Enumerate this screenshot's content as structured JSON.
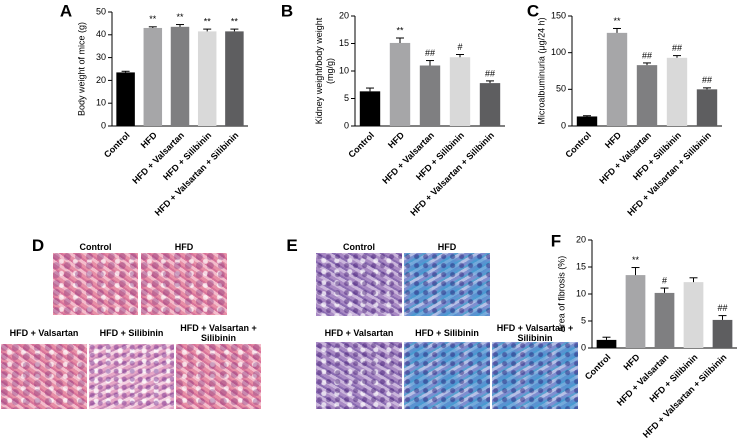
{
  "chart_data": [
    {
      "type": "bar",
      "panel": "A",
      "ylabel": [
        "Body weight of mice (g)"
      ],
      "categories": [
        "Control",
        "HFD",
        "HFD + Valsartan",
        "HFD + Silibinin",
        "HFD + Valsartan + Silibinin"
      ],
      "values": [
        23.5,
        43,
        43.5,
        41.5,
        41.5
      ],
      "errors": [
        0.5,
        0.5,
        1,
        1,
        1
      ],
      "annotations": [
        null,
        "**",
        "**",
        "**",
        "**"
      ],
      "colors": [
        "#000000",
        "#a6a6a8",
        "#7f7f81",
        "#d9d9d9",
        "#5e5e60"
      ],
      "ylim": [
        0,
        50
      ],
      "yticks": [
        0,
        10,
        20,
        30,
        40,
        50
      ]
    },
    {
      "type": "bar",
      "panel": "B",
      "ylabel": [
        "Kidney weight/body weight",
        "(mg/g)"
      ],
      "categories": [
        "Control",
        "HFD",
        "HFD + Valsartan",
        "HFD + Silibinin",
        "HFD + Valsartan + Silibinin"
      ],
      "values": [
        6.3,
        15.1,
        11,
        12.5,
        7.8
      ],
      "errors": [
        0.6,
        0.9,
        0.9,
        0.5,
        0.4
      ],
      "annotations": [
        null,
        "**",
        "##",
        "#",
        "##"
      ],
      "colors": [
        "#000000",
        "#a6a6a8",
        "#7f7f81",
        "#d9d9d9",
        "#5e5e60"
      ],
      "ylim": [
        0,
        20
      ],
      "yticks": [
        0,
        5,
        10,
        15,
        20
      ]
    },
    {
      "type": "bar",
      "panel": "C",
      "ylabel": [
        "Microalbuminuria (μg/24 h)"
      ],
      "categories": [
        "Control",
        "HFD",
        "HFD + Valsartan",
        "HFD + Silibinin",
        "HFD + Valsartan + Silibinin"
      ],
      "values": [
        13,
        127,
        83,
        93,
        50
      ],
      "errors": [
        1,
        6,
        3,
        3,
        2
      ],
      "annotations": [
        null,
        "**",
        "##",
        "##",
        "##"
      ],
      "colors": [
        "#000000",
        "#a6a6a8",
        "#7f7f81",
        "#d9d9d9",
        "#5e5e60"
      ],
      "ylim": [
        0,
        150
      ],
      "yticks": [
        0,
        50,
        100,
        150
      ]
    },
    {
      "type": "bar",
      "panel": "F",
      "ylabel": [
        "Area of fibrosis (%)"
      ],
      "categories": [
        "Control",
        "HFD",
        "HFD + Valsartan",
        "HFD + Silibinin",
        "HFD + Valsartan + Silibinin"
      ],
      "values": [
        1.5,
        13.5,
        10.2,
        12.2,
        5.2
      ],
      "errors": [
        0.5,
        1.4,
        0.9,
        0.8,
        0.8
      ],
      "annotations": [
        null,
        "**",
        "#",
        null,
        "##"
      ],
      "colors": [
        "#000000",
        "#a6a6a8",
        "#7f7f81",
        "#d9d9d9",
        "#5e5e60"
      ],
      "ylim": [
        0,
        20
      ],
      "yticks": [
        0,
        5,
        10,
        15,
        20
      ]
    }
  ],
  "image_panels": [
    {
      "panel": "D",
      "captions": [
        "Control",
        "HFD",
        "HFD + Valsartan",
        "HFD + Silibinin",
        "HFD + Valsartan + Silibinin"
      ]
    },
    {
      "panel": "E",
      "captions": [
        "Control",
        "HFD",
        "HFD + Valsartan",
        "HFD + Silibinin",
        "HFD + Valsartan + Silibinin"
      ]
    }
  ]
}
